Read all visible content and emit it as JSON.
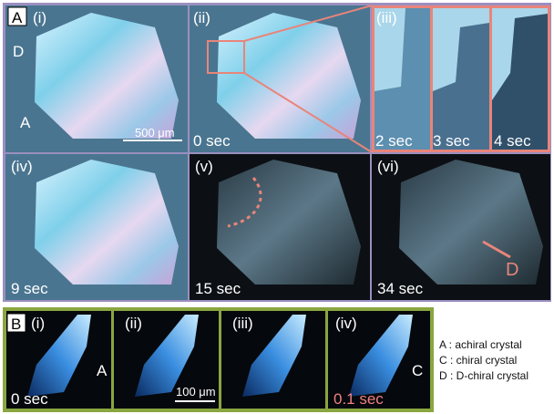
{
  "panel_a": {
    "label": "A",
    "images": [
      {
        "label": "(i)",
        "annotations": [
          "D",
          "A"
        ],
        "scale_bar": "500 μm"
      },
      {
        "label": "(ii)",
        "time": "0 sec"
      },
      {
        "label": "(iii)",
        "times": [
          "2 sec",
          "3 sec",
          "4 sec"
        ]
      },
      {
        "label": "(iv)",
        "time": "9 sec"
      },
      {
        "label": "(v)",
        "time": "15 sec"
      },
      {
        "label": "(vi)",
        "time": "34 sec",
        "annotation": "D"
      }
    ]
  },
  "panel_b": {
    "label": "B",
    "images": [
      {
        "label": "(i)",
        "time": "0 sec",
        "annotation": "A"
      },
      {
        "label": "(ii)",
        "scale_bar": "100 μm"
      },
      {
        "label": "(iii)"
      },
      {
        "label": "(iv)",
        "time": "0.1 sec",
        "annotation": "C"
      }
    ],
    "legend": [
      "A : achiral crystal",
      "C : chiral crystal",
      "D : D-chiral crystal"
    ]
  }
}
